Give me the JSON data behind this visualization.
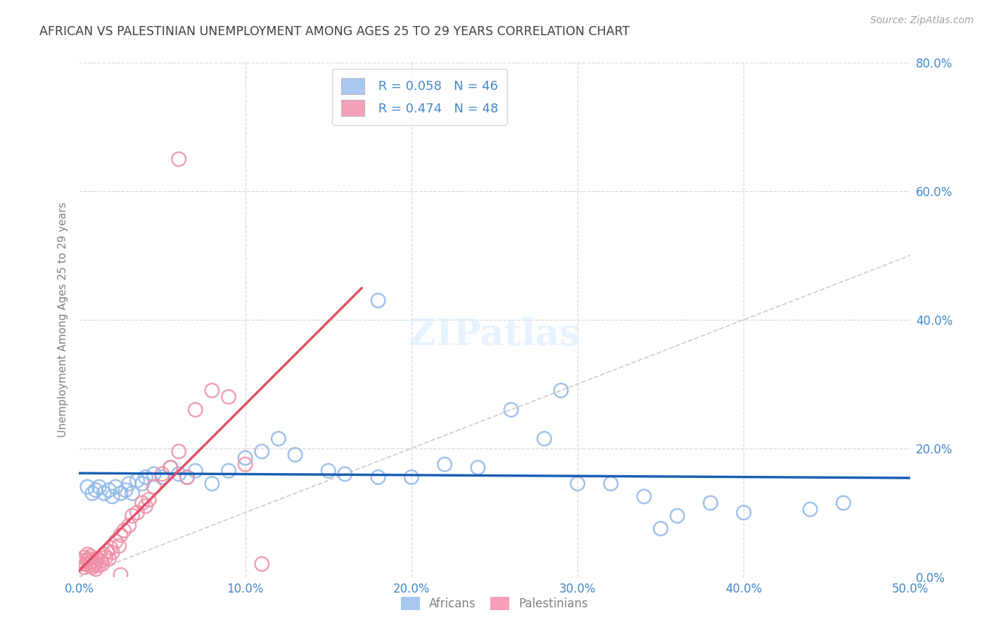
{
  "title": "AFRICAN VS PALESTINIAN UNEMPLOYMENT AMONG AGES 25 TO 29 YEARS CORRELATION CHART",
  "source": "Source: ZipAtlas.com",
  "ylabel": "Unemployment Among Ages 25 to 29 years",
  "xlim": [
    0.0,
    0.5
  ],
  "ylim": [
    0.0,
    0.8
  ],
  "xticks": [
    0.0,
    0.1,
    0.2,
    0.3,
    0.4,
    0.5
  ],
  "yticks": [
    0.0,
    0.2,
    0.4,
    0.6,
    0.8
  ],
  "african_R": "0.058",
  "african_N": 46,
  "palestinian_R": "0.474",
  "palestinian_N": 48,
  "african_scatter_face": "none",
  "african_scatter_edge": "#90b8e8",
  "palestinian_scatter_face": "none",
  "palestinian_scatter_edge": "#f090a8",
  "african_line_color": "#1a5fb4",
  "palestinian_line_color": "#e05068",
  "diagonal_color": "#c8c8c8",
  "grid_color": "#d8d8d8",
  "title_color": "#404040",
  "axis_label_color": "#808080",
  "tick_color": "#4488cc",
  "legend_patch_african": "#a8c8f0",
  "legend_patch_palestinian": "#f4a0b8",
  "background_color": "#ffffff",
  "africans_x": [
    0.005,
    0.008,
    0.01,
    0.012,
    0.015,
    0.018,
    0.02,
    0.022,
    0.025,
    0.028,
    0.03,
    0.032,
    0.035,
    0.038,
    0.04,
    0.045,
    0.05,
    0.055,
    0.06,
    0.065,
    0.07,
    0.08,
    0.09,
    0.1,
    0.11,
    0.12,
    0.13,
    0.15,
    0.16,
    0.18,
    0.2,
    0.22,
    0.24,
    0.26,
    0.28,
    0.3,
    0.32,
    0.34,
    0.36,
    0.4,
    0.44,
    0.18,
    0.29,
    0.38,
    0.46,
    0.35
  ],
  "africans_y": [
    0.14,
    0.13,
    0.135,
    0.14,
    0.13,
    0.135,
    0.125,
    0.14,
    0.13,
    0.135,
    0.145,
    0.13,
    0.15,
    0.145,
    0.155,
    0.16,
    0.155,
    0.17,
    0.16,
    0.155,
    0.165,
    0.145,
    0.165,
    0.185,
    0.195,
    0.215,
    0.19,
    0.165,
    0.16,
    0.155,
    0.155,
    0.175,
    0.17,
    0.26,
    0.215,
    0.145,
    0.145,
    0.125,
    0.095,
    0.1,
    0.105,
    0.43,
    0.29,
    0.115,
    0.115,
    0.075
  ],
  "palestinians_x": [
    0.001,
    0.002,
    0.003,
    0.003,
    0.004,
    0.005,
    0.005,
    0.006,
    0.006,
    0.007,
    0.007,
    0.008,
    0.008,
    0.009,
    0.01,
    0.01,
    0.011,
    0.012,
    0.013,
    0.014,
    0.015,
    0.016,
    0.017,
    0.018,
    0.019,
    0.02,
    0.022,
    0.024,
    0.025,
    0.027,
    0.03,
    0.032,
    0.035,
    0.038,
    0.04,
    0.042,
    0.045,
    0.05,
    0.055,
    0.06,
    0.065,
    0.07,
    0.08,
    0.09,
    0.1,
    0.11,
    0.06,
    0.025
  ],
  "palestinians_y": [
    0.02,
    0.025,
    0.015,
    0.03,
    0.02,
    0.025,
    0.035,
    0.018,
    0.028,
    0.022,
    0.032,
    0.015,
    0.025,
    0.018,
    0.012,
    0.022,
    0.028,
    0.018,
    0.025,
    0.02,
    0.035,
    0.03,
    0.04,
    0.028,
    0.045,
    0.038,
    0.055,
    0.048,
    0.065,
    0.072,
    0.08,
    0.095,
    0.1,
    0.115,
    0.11,
    0.12,
    0.14,
    0.16,
    0.17,
    0.195,
    0.155,
    0.26,
    0.29,
    0.28,
    0.175,
    0.02,
    0.65,
    0.003
  ]
}
